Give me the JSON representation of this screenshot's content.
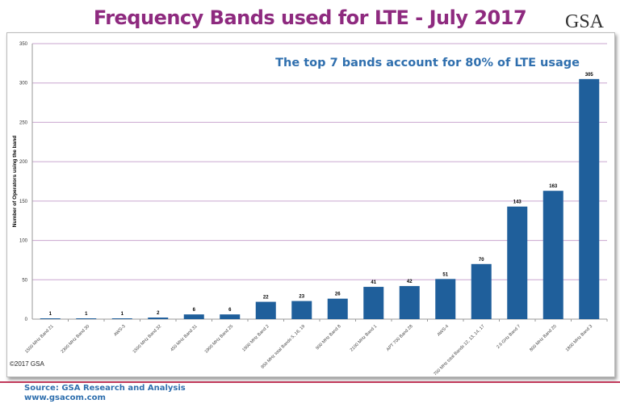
{
  "header": {
    "title": "Frequency Bands used for LTE - July 2017",
    "logo": "GSA"
  },
  "footer": {
    "copyright": "©2017 GSA",
    "source": "Source: GSA Research and Analysis",
    "url": "www.gsacom.com"
  },
  "chart_data": {
    "type": "bar",
    "title": "Frequency Bands used for LTE - July 2017",
    "annotation": "The top 7 bands account for 80% of LTE usage",
    "xlabel": "",
    "ylabel": "Number of Operators using the band",
    "ylim": [
      0,
      350
    ],
    "yticks": [
      0,
      50,
      100,
      150,
      200,
      250,
      300,
      350
    ],
    "grid": true,
    "bar_color": "#1f5f9b",
    "grid_color": "#c9a6cf",
    "title_color": "#8e2a7f",
    "annotation_color": "#2f6fae",
    "categories": [
      "1500 MHz Band 21",
      "2300 MHz Band 30",
      "AWS-3",
      "1500 MHz Band 32",
      "450 MHz Band 31",
      "1900 MHz Band 25",
      "1900 MHz Band 2",
      "850 MHz total Bands 5, 18, 19",
      "900 MHz Band 8",
      "2100 MHz Band 1",
      "APT 700 Band 28",
      "AWS-4",
      "700 MHz total Bands 12, 13, 14, 17",
      "2.6 GHz Band 7",
      "800 MHz Band 20",
      "1800 MHz Band 3"
    ],
    "values": [
      1,
      1,
      1,
      2,
      6,
      6,
      22,
      23,
      26,
      41,
      42,
      51,
      70,
      143,
      163,
      305
    ]
  }
}
